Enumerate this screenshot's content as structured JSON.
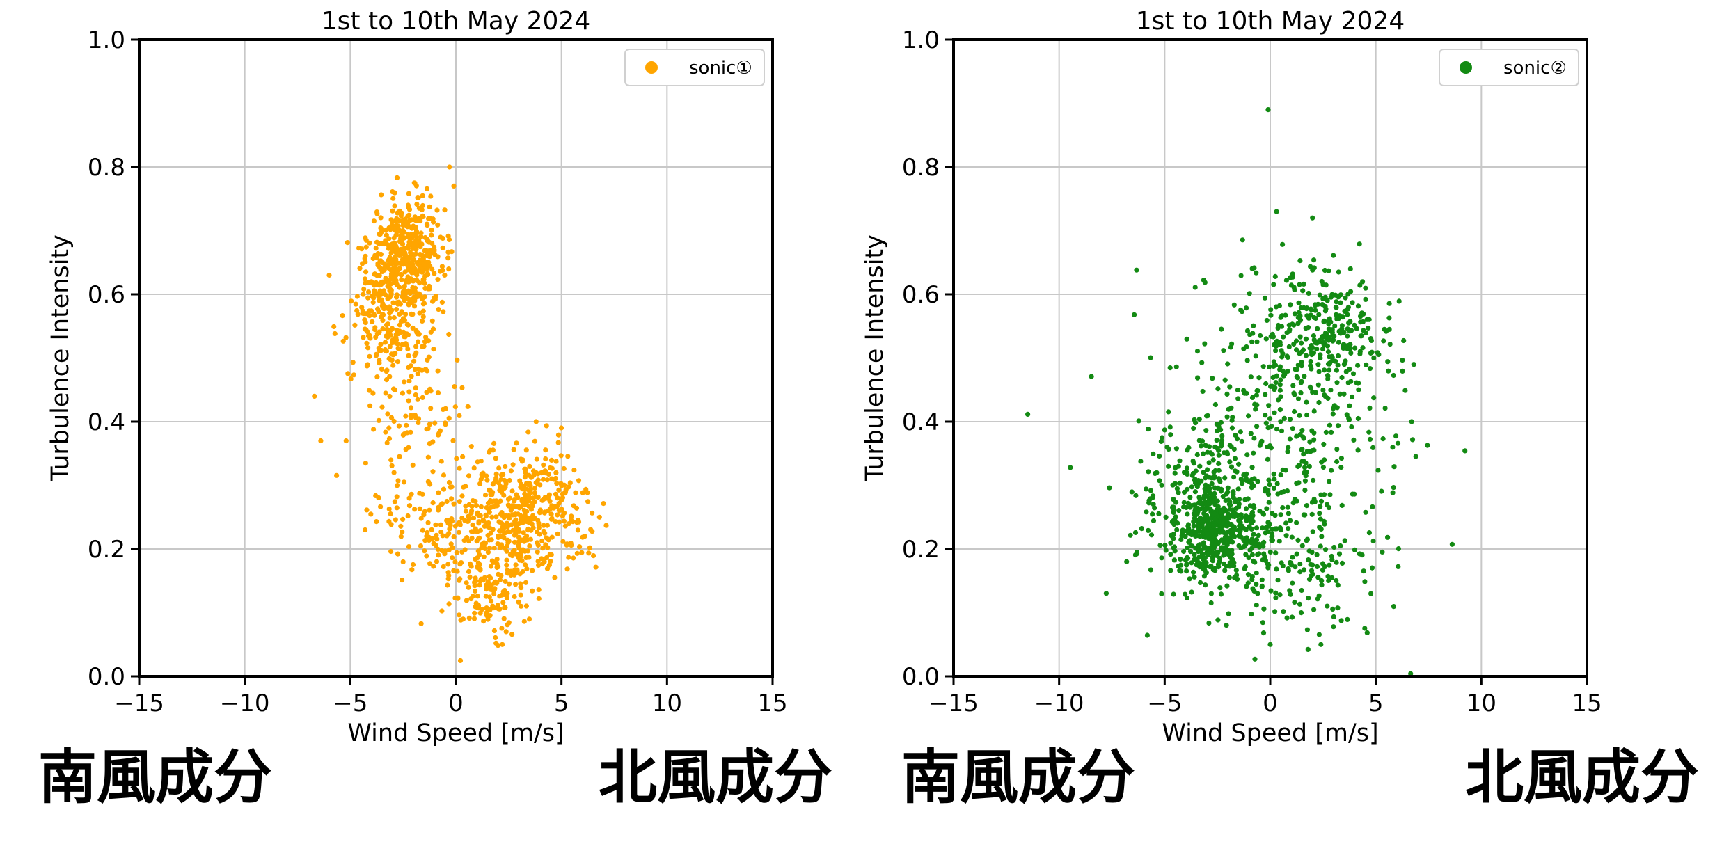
{
  "chart_data": [
    {
      "type": "scatter",
      "title": "1st to 10th May 2024",
      "xlabel": "Wind Speed [m/s]",
      "ylabel": "Turbulence Intensity",
      "xlim": [
        -15,
        15
      ],
      "ylim": [
        0.0,
        1.0
      ],
      "xticks": [
        -15,
        -10,
        -5,
        0,
        5,
        10,
        15
      ],
      "xtick_labels": [
        "−15",
        "−10",
        "−5",
        "0",
        "5",
        "10",
        "15"
      ],
      "yticks": [
        0.0,
        0.2,
        0.4,
        0.6,
        0.8,
        1.0
      ],
      "ytick_labels": [
        "0.0",
        "0.2",
        "0.4",
        "0.6",
        "0.8",
        "1.0"
      ],
      "grid": true,
      "legend_position": "top-right",
      "color": "#FFA500",
      "series": [
        {
          "name": "sonic①",
          "clusters": [
            {
              "center": [
                -2.3,
                0.66
              ],
              "spread": [
                0.9,
                0.045
              ],
              "count": 420
            },
            {
              "center": [
                -3.2,
                0.57
              ],
              "spread": [
                1.0,
                0.06
              ],
              "count": 250
            },
            {
              "center": [
                -1.6,
                0.42
              ],
              "spread": [
                1.2,
                0.06
              ],
              "count": 90
            },
            {
              "center": [
                3.5,
                0.26
              ],
              "spread": [
                1.4,
                0.05
              ],
              "count": 360
            },
            {
              "center": [
                0.8,
                0.24
              ],
              "spread": [
                2.4,
                0.045
              ],
              "count": 260
            },
            {
              "center": [
                1.8,
                0.13
              ],
              "spread": [
                1.1,
                0.04
              ],
              "count": 130
            }
          ],
          "points": [
            [
              -0.3,
              0.8
            ],
            [
              -0.1,
              0.77
            ],
            [
              -6.4,
              0.37
            ],
            [
              -5.2,
              0.37
            ],
            [
              -6.7,
              0.44
            ],
            [
              -6.0,
              0.63
            ],
            [
              2.2,
              0.05
            ],
            [
              3.8,
              0.4
            ],
            [
              6.8,
              0.25
            ],
            [
              -4.3,
              0.23
            ]
          ]
        }
      ]
    },
    {
      "type": "scatter",
      "title": "1st to 10th May 2024",
      "xlabel": "Wind Speed [m/s]",
      "ylabel": "Turbulence Intensity",
      "xlim": [
        -15,
        15
      ],
      "ylim": [
        0.0,
        1.0
      ],
      "xticks": [
        -15,
        -10,
        -5,
        0,
        5,
        10,
        15
      ],
      "xtick_labels": [
        "−15",
        "−10",
        "−5",
        "0",
        "5",
        "10",
        "15"
      ],
      "yticks": [
        0.0,
        0.2,
        0.4,
        0.6,
        0.8,
        1.0
      ],
      "ytick_labels": [
        "0.0",
        "0.2",
        "0.4",
        "0.6",
        "0.8",
        "1.0"
      ],
      "grid": true,
      "legend_position": "top-right",
      "color": "#138A13",
      "series": [
        {
          "name": "sonic②",
          "clusters": [
            {
              "center": [
                -2.5,
                0.23
              ],
              "spread": [
                0.9,
                0.04
              ],
              "count": 380
            },
            {
              "center": [
                -3.2,
                0.27
              ],
              "spread": [
                1.6,
                0.07
              ],
              "count": 240
            },
            {
              "center": [
                2.3,
                0.53
              ],
              "spread": [
                1.6,
                0.05
              ],
              "count": 300
            },
            {
              "center": [
                0.5,
                0.36
              ],
              "spread": [
                3.0,
                0.13
              ],
              "count": 350
            },
            {
              "center": [
                1.0,
                0.18
              ],
              "spread": [
                2.0,
                0.06
              ],
              "count": 150
            }
          ],
          "points": [
            [
              -0.1,
              0.89
            ],
            [
              0.3,
              0.73
            ],
            [
              2.0,
              0.72
            ],
            [
              3.8,
              0.64
            ],
            [
              -6.8,
              0.18
            ],
            [
              6.8,
              0.49
            ],
            [
              6.7,
              0.4
            ],
            [
              0.0,
              0.05
            ],
            [
              2.4,
              0.05
            ],
            [
              -1.8,
              0.39
            ]
          ]
        }
      ]
    }
  ],
  "captions": {
    "left_south": "南風成分",
    "left_north": "北風成分",
    "right_south": "南風成分",
    "right_north": "北風成分"
  }
}
